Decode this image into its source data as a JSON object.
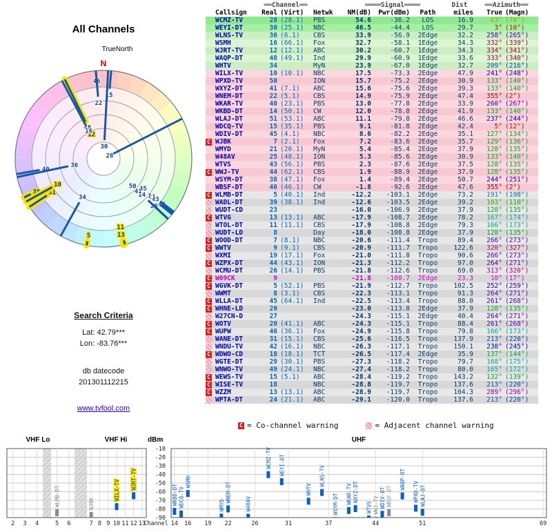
{
  "header": {
    "title": "All Channels"
  },
  "radar": {
    "north": "N",
    "true_north": "TrueNorth"
  },
  "search": {
    "heading": "Search Criteria",
    "lat": "Lat: 42.79***",
    "lon": "Lon: -83.76***",
    "db_label": "db datecode",
    "db_value": "201301112215",
    "link": "www.tvfool.com"
  },
  "table": {
    "group": {
      "channel": "══Channel══",
      "signal": "════Signal════",
      "dist": "Dist",
      "azimuth": "══Azimuth══"
    },
    "h": {
      "callsign": "Callsign",
      "real": "Real",
      "virt": "(Virt)",
      "netwk": "Netwk",
      "nm": "NM(dB)",
      "pwr": "Pwr(dBm)",
      "path": "Path",
      "miles": "miles",
      "true": "True",
      "magn": "(Magn)"
    }
  },
  "legend": {
    "c": "C",
    "c_text": "= Co-channel warning",
    "a_text": "= Adjacent channel warning"
  },
  "bottom": {
    "vhf_lo": "VHF Lo",
    "vhf_hi": "VHF Hi",
    "uhf": "UHF",
    "dbm": "dBm",
    "channel": "Channel",
    "dbm_ticks": [
      -10,
      -20,
      -30,
      -40,
      -50,
      -60,
      -70,
      -80,
      -90
    ],
    "vhf_ticks": [
      2,
      3,
      4,
      5,
      6,
      7,
      8,
      9,
      10,
      11,
      12,
      13
    ],
    "uhf_ticks": [
      14,
      16,
      19,
      22,
      26,
      31,
      37,
      44,
      51,
      69
    ]
  },
  "stations": [
    {
      "c": "WCMZ-TV",
      "r": 28,
      "v": "28.1",
      "n": "PBS",
      "nm": 54.6,
      "pw": -36.2,
      "p": "LOS",
      "mi": 16.9,
      "t": 63,
      "m": 70,
      "w": ""
    },
    {
      "c": "WEYI-DT",
      "r": 30,
      "v": "25.1",
      "n": "NBC",
      "nm": 46.5,
      "pw": -44.4,
      "p": "LOS",
      "mi": 29.7,
      "t": 3,
      "m": 10,
      "w": ""
    },
    {
      "c": "WLNS-TV",
      "r": 36,
      "v": "6.1",
      "n": "CBS",
      "nm": 33.9,
      "pw": -56.9,
      "p": "2Edge",
      "mi": 32.2,
      "t": 258,
      "m": 265,
      "w": ""
    },
    {
      "c": "WSMH",
      "r": 16,
      "v": "66.1",
      "n": "Fox",
      "nm": 32.7,
      "pw": -58.1,
      "p": "1Edge",
      "mi": 34.3,
      "t": 332,
      "m": 339,
      "w": ""
    },
    {
      "c": "WJRT-TV",
      "r": 12,
      "v": "12.1",
      "n": "ABC",
      "nm": 30.2,
      "pw": -60.7,
      "p": "1Edge",
      "mi": 34.3,
      "t": 334,
      "m": 341,
      "w": "",
      "hr": true,
      "hc": true
    },
    {
      "c": "WAQP-DT",
      "r": 48,
      "v": "49.1",
      "n": "Ind",
      "nm": 29.9,
      "pw": -60.9,
      "p": "1Edge",
      "mi": 33.6,
      "t": 333,
      "m": 340,
      "w": ""
    },
    {
      "c": "WHTV",
      "r": 34,
      "v": "",
      "n": "MyN",
      "nm": 23.9,
      "pw": -67.0,
      "p": "1Edge",
      "mi": 32.7,
      "t": 209,
      "m": 216,
      "w": ""
    },
    {
      "c": "WILX-TV",
      "r": 10,
      "v": "10.1",
      "n": "NBC",
      "nm": 17.5,
      "pw": -73.3,
      "p": "2Edge",
      "mi": 47.9,
      "t": 241,
      "m": 248,
      "w": "",
      "hr": true,
      "hc": true
    },
    {
      "c": "WPXD-TV",
      "r": 50,
      "v": "",
      "n": "ION",
      "nm": 15.7,
      "pw": -75.2,
      "p": "2Edge",
      "mi": 30.9,
      "t": 133,
      "m": 140,
      "w": ""
    },
    {
      "c": "WXYZ-DT",
      "r": 41,
      "v": "7.1",
      "n": "ABC",
      "nm": 15.6,
      "pw": -75.6,
      "p": "2Edge",
      "mi": 39.3,
      "t": 133,
      "m": 140,
      "w": ""
    },
    {
      "c": "WNEM-DT",
      "r": 22,
      "v": "5.1",
      "n": "CBS",
      "nm": 14.9,
      "pw": -75.9,
      "p": "2Edge",
      "mi": 47.4,
      "t": 355,
      "m": 2,
      "w": ""
    },
    {
      "c": "WKAR-TV",
      "r": 40,
      "v": "23.1",
      "n": "PBS",
      "nm": 13.0,
      "pw": -77.8,
      "p": "2Edge",
      "mi": 33.9,
      "t": 260,
      "m": 267,
      "w": ""
    },
    {
      "c": "WKBD-DT",
      "r": 14,
      "v": "50.1",
      "n": "CW",
      "nm": 12.0,
      "pw": -78.8,
      "p": "2Edge",
      "mi": 41.9,
      "t": 133,
      "m": 140,
      "w": ""
    },
    {
      "c": "WLAJ-DT",
      "r": 51,
      "v": "53.1",
      "n": "ABC",
      "nm": 11.1,
      "pw": -79.8,
      "p": "2Edge",
      "mi": 46.6,
      "t": 237,
      "m": 244,
      "w": "",
      "hr": true
    },
    {
      "c": "WDCQ-TV",
      "r": 15,
      "v": "35.1",
      "n": "PBS",
      "nm": 9.1,
      "pw": -81.8,
      "p": "2Edge",
      "mi": 42.4,
      "t": 5,
      "m": 12,
      "w": ""
    },
    {
      "c": "WDIV-DT",
      "r": 45,
      "v": "4.1",
      "n": "NBC",
      "nm": 8.6,
      "pw": -82.2,
      "p": "2Edge",
      "mi": 35.1,
      "t": 127,
      "m": 134,
      "w": ""
    },
    {
      "c": "WJBK",
      "r": 7,
      "v": "2.1",
      "n": "Fox",
      "nm": 7.2,
      "pw": -83.6,
      "p": "2Edge",
      "mi": 35.7,
      "t": 129,
      "m": 136,
      "w": "C"
    },
    {
      "c": "WMYD",
      "r": 21,
      "v": "20.1",
      "n": "MyN",
      "nm": 5.4,
      "pw": -85.4,
      "p": "2Edge",
      "mi": 37.9,
      "t": 128,
      "m": 135,
      "w": ""
    },
    {
      "c": "W48AV",
      "r": 25,
      "v": "48.1",
      "n": "ION",
      "nm": 5.3,
      "pw": -85.6,
      "p": "2Edge",
      "mi": 30.9,
      "t": 133,
      "m": 140,
      "w": ""
    },
    {
      "c": "WTVS",
      "r": 43,
      "v": "56.1",
      "n": "PBS",
      "nm": 2.3,
      "pw": -87.6,
      "p": "2Edge",
      "mi": 37.5,
      "t": 128,
      "m": 135,
      "w": ""
    },
    {
      "c": "WWJ-TV",
      "r": 44,
      "v": "62.1",
      "n": "CBS",
      "nm": 1.9,
      "pw": -88.9,
      "p": "2Edge",
      "mi": 37.9,
      "t": 128,
      "m": 135,
      "w": "C"
    },
    {
      "c": "WSYM-DT",
      "r": 38,
      "v": "47.1",
      "n": "Fox",
      "nm": 1.4,
      "pw": -89.4,
      "p": "2Edge",
      "mi": 50.7,
      "t": 244,
      "m": 251,
      "w": "",
      "hr": true
    },
    {
      "c": "WBSF-DT",
      "r": 46,
      "v": "46.1",
      "n": "CW",
      "nm": -1.8,
      "pw": -92.6,
      "p": "2Edge",
      "mi": 47.6,
      "t": 355,
      "m": 2,
      "w": ""
    },
    {
      "c": "WLMB-DT",
      "r": 5,
      "v": "40.1",
      "n": "Ind",
      "nm": -12.2,
      "pw": -103.1,
      "p": "2Edge",
      "mi": 73.2,
      "t": 191,
      "m": 198,
      "w": "C",
      "hr": true
    },
    {
      "c": "WADL-DT",
      "r": 39,
      "v": "38.1",
      "n": "Ind",
      "nm": -12.6,
      "pw": -103.5,
      "p": "2Edge",
      "mi": 39.2,
      "t": 103,
      "m": 110,
      "w": "A"
    },
    {
      "c": "WUDT-CD",
      "r": 23,
      "v": "",
      "n": "",
      "nm": -16.0,
      "pw": -106.9,
      "p": "2Edge",
      "mi": 37.9,
      "t": 128,
      "m": 135,
      "w": "A"
    },
    {
      "c": "WTVG",
      "r": 13,
      "v": "13.1",
      "n": "ABC",
      "nm": -17.9,
      "pw": -108.7,
      "p": "2Edge",
      "mi": 78.2,
      "t": 167,
      "m": 174,
      "w": "C",
      "hr": true
    },
    {
      "c": "WTOL-DT",
      "r": 11,
      "v": "11.1",
      "n": "CBS",
      "nm": -17.9,
      "pw": -108.8,
      "p": "2Edge",
      "mi": 79.3,
      "t": 166,
      "m": 173,
      "w": "A",
      "hr": true
    },
    {
      "c": "WUDT-LD",
      "r": 8,
      "v": "",
      "n": "Day",
      "nm": -18.0,
      "pw": -108.8,
      "p": "2Edge",
      "mi": 37.9,
      "t": 128,
      "m": 135,
      "w": "A"
    },
    {
      "c": "WOOD-DT",
      "r": 7,
      "v": "8.1",
      "n": "NBC",
      "nm": -20.6,
      "pw": -111.4,
      "p": "Tropo",
      "mi": 89.4,
      "t": 266,
      "m": 273,
      "w": "C"
    },
    {
      "c": "WWTV",
      "r": 9,
      "v": "9.1",
      "n": "CBS",
      "nm": -20.9,
      "pw": -111.7,
      "p": "Tropo",
      "mi": 122.6,
      "t": 320,
      "m": 327,
      "w": "C"
    },
    {
      "c": "WXMI",
      "r": 19,
      "v": "17.1",
      "n": "Fox",
      "nm": -21.0,
      "pw": -111.8,
      "p": "Tropo",
      "mi": 90.6,
      "t": 266,
      "m": 273,
      "w": "A"
    },
    {
      "c": "WZPX-DT",
      "r": 44,
      "v": "43.1",
      "n": "ION",
      "nm": -21.3,
      "pw": -112.2,
      "p": "Tropo",
      "mi": 97.0,
      "t": 264,
      "m": 271,
      "w": "C"
    },
    {
      "c": "WCMU-DT",
      "r": 26,
      "v": "14.1",
      "n": "PBS",
      "nm": -21.8,
      "pw": -112.6,
      "p": "Tropo",
      "mi": 69.0,
      "t": 313,
      "m": 320,
      "w": "A"
    },
    {
      "c": "W09CK",
      "r": 9,
      "v": "",
      "n": "",
      "nm": -21.8,
      "pw": -100.7,
      "p": "2Edge",
      "mi": 23.3,
      "t": 10,
      "m": 17,
      "w": "C",
      "an": true
    },
    {
      "c": "WGVK-DT",
      "r": 5,
      "v": "52.1",
      "n": "PBS",
      "nm": -21.9,
      "pw": -112.7,
      "p": "Tropo",
      "mi": 102.5,
      "t": 252,
      "m": 259,
      "w": "C"
    },
    {
      "c": "WWMT",
      "r": 8,
      "v": "3.1",
      "n": "CBS",
      "nm": -22.3,
      "pw": -113.1,
      "p": "Tropo",
      "mi": 91.3,
      "t": 264,
      "m": 271,
      "w": "A"
    },
    {
      "c": "WLLA-DT",
      "r": 45,
      "v": "64.1",
      "n": "Ind",
      "nm": -22.5,
      "pw": -113.4,
      "p": "Tropo",
      "mi": 88.0,
      "t": 261,
      "m": 268,
      "w": "C"
    },
    {
      "c": "WHNE-LD",
      "r": 20,
      "v": "",
      "n": "",
      "nm": -23.0,
      "pw": -113.8,
      "p": "2Edge",
      "mi": 37.9,
      "t": 128,
      "m": 135,
      "w": "C"
    },
    {
      "c": "W27CN-D",
      "r": 27,
      "v": "",
      "n": "",
      "nm": -24.3,
      "pw": -115.1,
      "p": "2Edge",
      "mi": 40.4,
      "t": 264,
      "m": 271,
      "w": "A"
    },
    {
      "c": "WOTV",
      "r": 20,
      "v": "41.1",
      "n": "ABC",
      "nm": -24.3,
      "pw": -115.1,
      "p": "Tropo",
      "mi": 88.4,
      "t": 261,
      "m": 268,
      "w": "C"
    },
    {
      "c": "WUPW",
      "r": 46,
      "v": "36.1",
      "n": "Fox",
      "nm": -24.9,
      "pw": -115.8,
      "p": "Tropo",
      "mi": 79.8,
      "t": 166,
      "m": 173,
      "w": "C"
    },
    {
      "c": "WANE-DT",
      "r": 31,
      "v": "15.1",
      "n": "CBS",
      "nm": -25.6,
      "pw": -116.5,
      "p": "Tropo",
      "mi": 137.9,
      "t": 213,
      "m": 220,
      "w": "A"
    },
    {
      "c": "WNDU-TV",
      "r": 42,
      "v": "16.1",
      "n": "NBC",
      "nm": -26.3,
      "pw": -117.1,
      "p": "Tropo",
      "mi": 150.1,
      "t": 238,
      "m": 245,
      "w": "A"
    },
    {
      "c": "WDWO-CD",
      "r": 18,
      "v": "18.1",
      "n": "TCT",
      "nm": -26.5,
      "pw": -117.4,
      "p": "2Edge",
      "mi": 35.9,
      "t": 137,
      "m": 144,
      "w": "C"
    },
    {
      "c": "WGTE-DT",
      "r": 29,
      "v": "30.1",
      "n": "PBS",
      "nm": -27.3,
      "pw": -118.2,
      "p": "Tropo",
      "mi": 79.7,
      "t": 168,
      "m": 175,
      "w": "A"
    },
    {
      "c": "WNWO-TV",
      "r": 49,
      "v": "24.1",
      "n": "NBC",
      "nm": -27.4,
      "pw": -118.2,
      "p": "Tropo",
      "mi": 80.0,
      "t": 165,
      "m": 172,
      "w": "A"
    },
    {
      "c": "WEWS-TV",
      "r": 15,
      "v": "5.1",
      "n": "ABC",
      "nm": -28.4,
      "pw": -119.2,
      "p": "Tropo",
      "mi": 143.2,
      "t": 132,
      "m": 139,
      "w": "C"
    },
    {
      "c": "WISE-TV",
      "r": 18,
      "v": "",
      "n": "NBC",
      "nm": -28.8,
      "pw": -119.7,
      "p": "Tropo",
      "mi": 137.6,
      "t": 213,
      "m": 220,
      "w": "C"
    },
    {
      "c": "WZZM",
      "r": 13,
      "v": "13.1",
      "n": "ABC",
      "nm": -28.9,
      "pw": -119.7,
      "p": "Tropo",
      "mi": 104.3,
      "t": 289,
      "m": 296,
      "w": "C"
    },
    {
      "c": "WPTA-DT",
      "r": 24,
      "v": "21.1",
      "n": "ABC",
      "nm": -29.1,
      "pw": -120.0,
      "p": "Tropo",
      "mi": 137.6,
      "t": 213,
      "m": 220,
      "w": "A"
    }
  ]
}
